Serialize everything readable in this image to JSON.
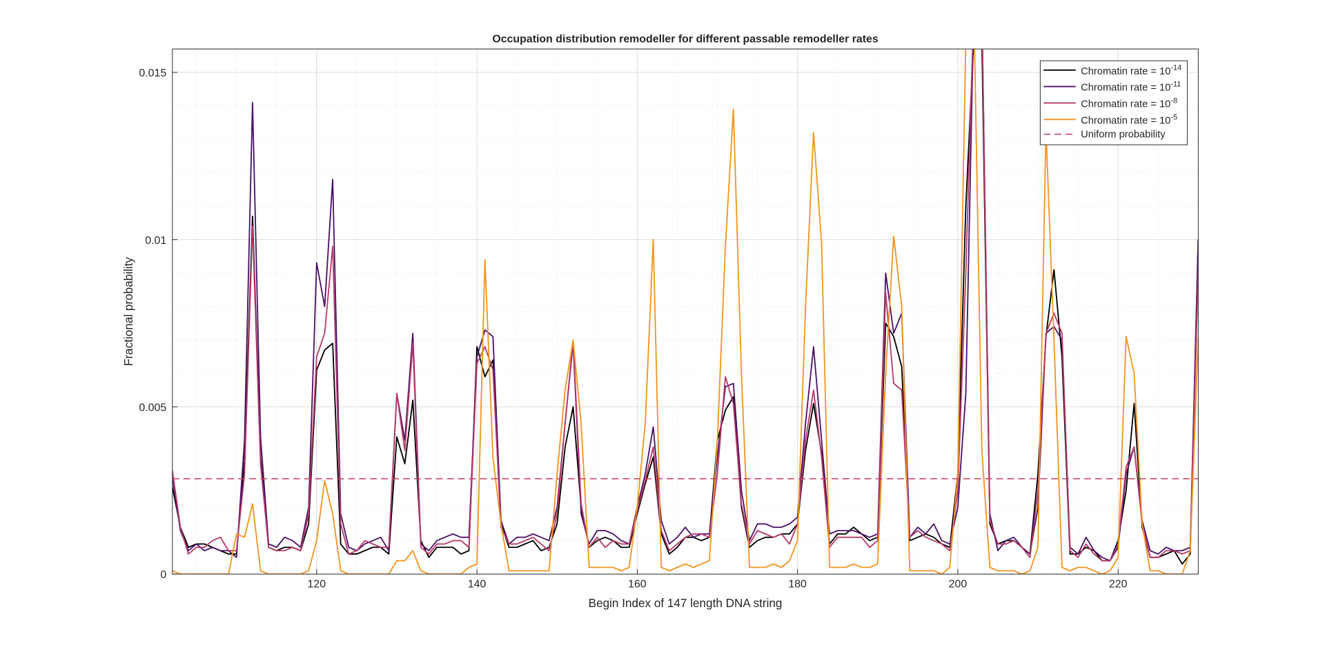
{
  "chart_data": {
    "type": "line",
    "title": "Occupation distribution remodeller for different passable remodeller rates",
    "x_label": "Begin Index of 147 length DNA string",
    "y_label": "Fractional probability",
    "xlim": [
      102,
      230
    ],
    "ylim": [
      0,
      0.0157
    ],
    "xticks": [
      120,
      140,
      160,
      180,
      200,
      220
    ],
    "yticks": [
      0,
      0.005,
      0.01,
      0.015
    ],
    "xminorticks": [
      105,
      110,
      115,
      120,
      125,
      130,
      135,
      140,
      145,
      150,
      155,
      160,
      165,
      170,
      175,
      180,
      185,
      190,
      195,
      200,
      205,
      210,
      215,
      220,
      225,
      230
    ],
    "yminorticks": [
      0,
      0.001,
      0.002,
      0.003,
      0.004,
      0.005,
      0.006,
      0.007,
      0.008,
      0.009,
      0.01,
      0.011,
      0.012,
      0.013,
      0.014,
      0.015
    ],
    "grid": true,
    "minor_grid": true,
    "legend": "upper right",
    "x": [
      102,
      103,
      104,
      105,
      106,
      107,
      108,
      109,
      110,
      111,
      112,
      113,
      114,
      115,
      116,
      117,
      118,
      119,
      120,
      121,
      122,
      123,
      124,
      125,
      126,
      127,
      128,
      129,
      130,
      131,
      132,
      133,
      134,
      135,
      136,
      137,
      138,
      139,
      140,
      141,
      142,
      143,
      144,
      145,
      146,
      147,
      148,
      149,
      150,
      151,
      152,
      153,
      154,
      155,
      156,
      157,
      158,
      159,
      160,
      161,
      162,
      163,
      164,
      165,
      166,
      167,
      168,
      169,
      170,
      171,
      172,
      173,
      174,
      175,
      176,
      177,
      178,
      179,
      180,
      181,
      182,
      183,
      184,
      185,
      186,
      187,
      188,
      189,
      190,
      191,
      192,
      193,
      194,
      195,
      196,
      197,
      198,
      199,
      200,
      201,
      202,
      203,
      204,
      205,
      206,
      207,
      208,
      209,
      210,
      211,
      212,
      213,
      214,
      215,
      216,
      217,
      218,
      219,
      220,
      221,
      222,
      223,
      224,
      225,
      226,
      227,
      228,
      229,
      230
    ],
    "series": [
      {
        "name": {
          "base": "Chromatin rate = 10",
          "exponent": "-14"
        },
        "color": "#000000",
        "values": [
          0.0026,
          0.0014,
          0.0008,
          0.0009,
          0.0009,
          0.0008,
          0.0007,
          0.0006,
          0.0006,
          0.0034,
          0.0107,
          0.0035,
          0.0008,
          0.0007,
          0.0008,
          0.0008,
          0.0007,
          0.0015,
          0.0061,
          0.0067,
          0.0069,
          0.0009,
          0.0006,
          0.0006,
          0.0007,
          0.0008,
          0.0008,
          0.0006,
          0.0041,
          0.0033,
          0.0052,
          0.001,
          0.0005,
          0.0008,
          0.0008,
          0.0008,
          0.0006,
          0.0007,
          0.0068,
          0.0059,
          0.0064,
          0.0015,
          0.0008,
          0.0008,
          0.0009,
          0.001,
          0.0007,
          0.0008,
          0.0015,
          0.0038,
          0.005,
          0.002,
          0.0008,
          0.001,
          0.0011,
          0.001,
          0.0008,
          0.0008,
          0.0018,
          0.0027,
          0.0035,
          0.0012,
          0.0006,
          0.0008,
          0.0011,
          0.0011,
          0.001,
          0.0011,
          0.004,
          0.0049,
          0.0053,
          0.002,
          0.0008,
          0.001,
          0.0011,
          0.0011,
          0.0012,
          0.0012,
          0.0015,
          0.0037,
          0.0051,
          0.0036,
          0.0009,
          0.0012,
          0.0012,
          0.0014,
          0.0012,
          0.001,
          0.0011,
          0.0075,
          0.0071,
          0.0062,
          0.001,
          0.0011,
          0.0012,
          0.0011,
          0.0009,
          0.0008,
          0.003,
          0.011,
          0.016,
          0.016,
          0.0015,
          0.0009,
          0.001,
          0.001,
          0.0008,
          0.0006,
          0.003,
          0.0071,
          0.0091,
          0.0065,
          0.0006,
          0.0006,
          0.0008,
          0.0007,
          0.0004,
          0.0004,
          0.001,
          0.0025,
          0.0051,
          0.0014,
          0.0005,
          0.0005,
          0.0006,
          0.0007,
          0.0003,
          0.0006,
          0.01
        ]
      },
      {
        "name": {
          "base": "Chromatin rate = 10",
          "exponent": "-11"
        },
        "color": "#4a1268",
        "values": [
          0.0029,
          0.0013,
          0.0007,
          0.0009,
          0.0007,
          0.0008,
          0.0007,
          0.0007,
          0.0005,
          0.004,
          0.0141,
          0.0041,
          0.0009,
          0.0008,
          0.0011,
          0.001,
          0.0008,
          0.002,
          0.0093,
          0.008,
          0.0118,
          0.0018,
          0.0008,
          0.0007,
          0.0009,
          0.001,
          0.0011,
          0.0007,
          0.0054,
          0.004,
          0.0072,
          0.0009,
          0.0007,
          0.001,
          0.0011,
          0.0012,
          0.0011,
          0.0011,
          0.0065,
          0.0073,
          0.0071,
          0.0016,
          0.0009,
          0.0011,
          0.0011,
          0.0012,
          0.0011,
          0.001,
          0.002,
          0.0045,
          0.0069,
          0.0018,
          0.0009,
          0.0013,
          0.0013,
          0.0012,
          0.001,
          0.0009,
          0.002,
          0.003,
          0.0044,
          0.0016,
          0.0009,
          0.0011,
          0.0014,
          0.0011,
          0.0012,
          0.0012,
          0.0035,
          0.0056,
          0.0057,
          0.0025,
          0.001,
          0.0015,
          0.0015,
          0.0014,
          0.0014,
          0.0015,
          0.0017,
          0.0045,
          0.0068,
          0.004,
          0.0012,
          0.0013,
          0.0013,
          0.0013,
          0.0012,
          0.0011,
          0.0012,
          0.009,
          0.0072,
          0.0078,
          0.0011,
          0.0014,
          0.0012,
          0.0015,
          0.001,
          0.0009,
          0.002,
          0.0054,
          0.017,
          0.017,
          0.0018,
          0.0007,
          0.001,
          0.0011,
          0.0008,
          0.0006,
          0.002,
          0.0072,
          0.0074,
          0.007,
          0.0008,
          0.0006,
          0.0011,
          0.0007,
          0.0005,
          0.0004,
          0.0008,
          0.003,
          0.0038,
          0.0016,
          0.0007,
          0.0006,
          0.0008,
          0.0007,
          0.0007,
          0.0008,
          0.01
        ]
      },
      {
        "name": {
          "base": "Chromatin rate = 10",
          "exponent": "-8"
        },
        "color": "#b83a6a",
        "values": [
          0.0031,
          0.0014,
          0.0006,
          0.0008,
          0.0008,
          0.001,
          0.0011,
          0.0007,
          0.0007,
          0.003,
          0.0104,
          0.0033,
          0.0008,
          0.0007,
          0.0007,
          0.0008,
          0.0007,
          0.0018,
          0.0065,
          0.0072,
          0.0098,
          0.0015,
          0.0006,
          0.0007,
          0.001,
          0.0009,
          0.0008,
          0.0008,
          0.0054,
          0.0037,
          0.0069,
          0.0008,
          0.0006,
          0.0009,
          0.0009,
          0.001,
          0.001,
          0.0008,
          0.0063,
          0.0068,
          0.0061,
          0.0014,
          0.0009,
          0.0009,
          0.001,
          0.0011,
          0.0009,
          0.0007,
          0.0018,
          0.0045,
          0.007,
          0.0021,
          0.0008,
          0.0011,
          0.0008,
          0.001,
          0.0009,
          0.0009,
          0.0019,
          0.0028,
          0.0038,
          0.0013,
          0.0007,
          0.0009,
          0.0011,
          0.0012,
          0.0012,
          0.0011,
          0.003,
          0.0059,
          0.0051,
          0.0021,
          0.0009,
          0.0013,
          0.0012,
          0.0011,
          0.0012,
          0.0009,
          0.0015,
          0.004,
          0.0055,
          0.0035,
          0.0008,
          0.0011,
          0.0011,
          0.0011,
          0.0011,
          0.0008,
          0.001,
          0.0084,
          0.0057,
          0.0055,
          0.0011,
          0.0013,
          0.0011,
          0.001,
          0.0009,
          0.0007,
          0.0025,
          0.009,
          0.017,
          0.017,
          0.0016,
          0.0009,
          0.0009,
          0.001,
          0.0008,
          0.0005,
          0.0025,
          0.0072,
          0.0078,
          0.0072,
          0.0007,
          0.0005,
          0.0009,
          0.0006,
          0.0004,
          0.0004,
          0.0009,
          0.0032,
          0.0038,
          0.0015,
          0.0005,
          0.0005,
          0.0007,
          0.0007,
          0.0006,
          0.0007,
          0.0091
        ]
      },
      {
        "name": {
          "base": "Chromatin rate = 10",
          "exponent": "-5"
        },
        "color": "#f39420",
        "values": [
          0.0001,
          0,
          0,
          0,
          0,
          0,
          0,
          0,
          0.0012,
          0.0011,
          0.0021,
          0.0001,
          0,
          0,
          0,
          0,
          0,
          0.0001,
          0.001,
          0.0028,
          0.0018,
          0.0001,
          0,
          0,
          0,
          0,
          0,
          0,
          0.0004,
          0.0004,
          0.0007,
          0.0001,
          0,
          0,
          0,
          0,
          0,
          0.0002,
          0.0003,
          0.0094,
          0.0035,
          0.0015,
          0.0001,
          0.0001,
          0.0001,
          0.0001,
          0.0001,
          0.0001,
          0.003,
          0.0055,
          0.007,
          0.0045,
          0.0002,
          0.0002,
          0.0002,
          0.0002,
          0.0001,
          0.0002,
          0.002,
          0.0045,
          0.01,
          0.0002,
          0.0001,
          0.0002,
          0.0003,
          0.0002,
          0.0003,
          0.0004,
          0.004,
          0.0098,
          0.0139,
          0.006,
          0.0002,
          0.0002,
          0.0002,
          0.0003,
          0.0002,
          0.0004,
          0.001,
          0.008,
          0.0132,
          0.0099,
          0.0002,
          0.0002,
          0.0002,
          0.0003,
          0.0002,
          0.0002,
          0.0003,
          0.006,
          0.0101,
          0.008,
          0.0001,
          0.0001,
          0.0001,
          0.0001,
          0,
          0.0002,
          0.003,
          0.016,
          0.017,
          0.0037,
          0.0002,
          0.0001,
          0.0001,
          0.0001,
          0,
          0.0001,
          0.0008,
          0.0133,
          0.007,
          0.0002,
          0.0001,
          0.0002,
          0.0002,
          0.0001,
          0,
          0.0001,
          0.0005,
          0.0071,
          0.006,
          0.0015,
          0.0001,
          0.0001,
          0,
          0,
          0,
          0.0007,
          0.0071
        ]
      }
    ],
    "reference_line": {
      "name": "Uniform probability",
      "color": "#c8405e",
      "value": 0.00285,
      "style": "dashed"
    }
  }
}
